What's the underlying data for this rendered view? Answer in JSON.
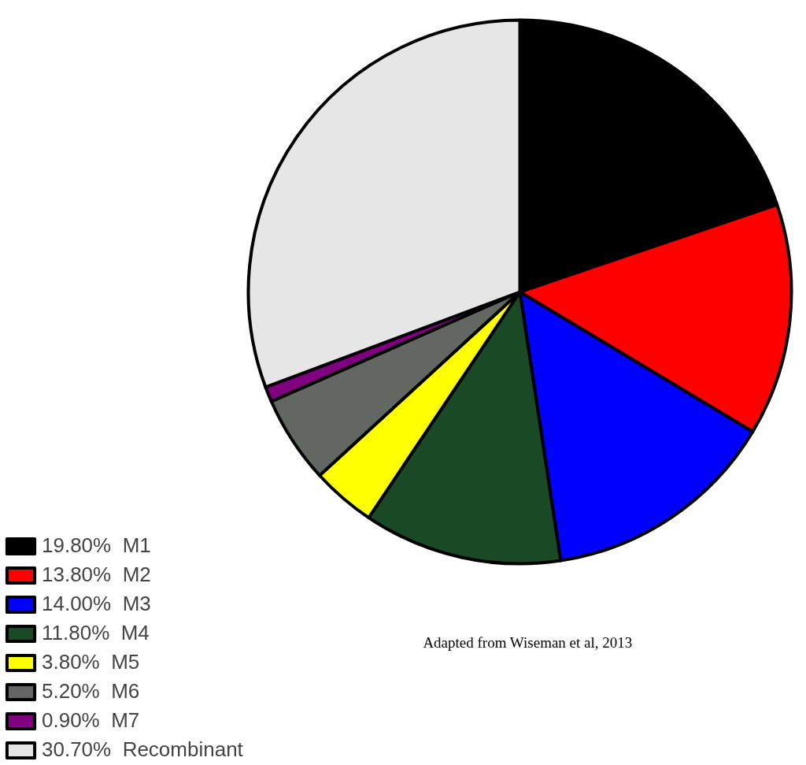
{
  "chart_data": {
    "type": "pie",
    "categories": [
      "M1",
      "M2",
      "M3",
      "M4",
      "M5",
      "M6",
      "M7",
      "Recombinant"
    ],
    "values": [
      19.8,
      13.8,
      14.0,
      11.8,
      3.8,
      5.2,
      0.9,
      30.7
    ],
    "value_labels": [
      "19.80%",
      "13.80%",
      "14.00%",
      "11.80%",
      "3.80%",
      "5.20%",
      "0.90%",
      "30.70%"
    ],
    "colors": [
      "#000000",
      "#ff0000",
      "#0000ff",
      "#1a4a25",
      "#ffff00",
      "#626762",
      "#800080",
      "#e6e6e6"
    ],
    "legend": "bottom left",
    "annotations": [
      "Adapted from Wiseman et al, 2013"
    ]
  }
}
